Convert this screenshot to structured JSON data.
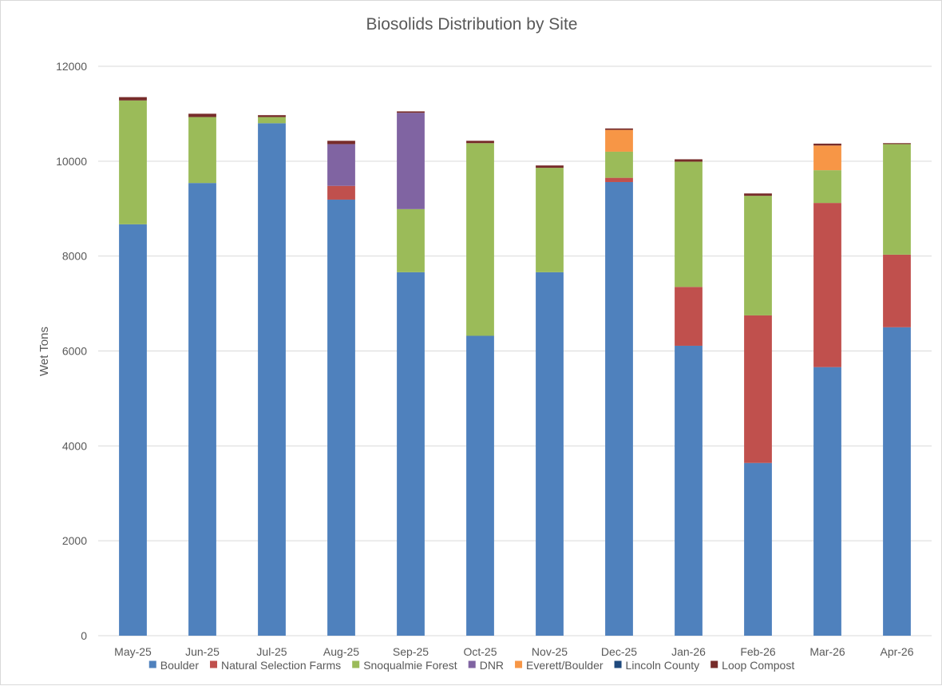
{
  "chart_data": {
    "type": "bar",
    "stacked": true,
    "title": "Biosolids Distribution by Site",
    "xlabel": "",
    "ylabel": "Wet Tons",
    "ylim": [
      0,
      12000
    ],
    "yticks": [
      0,
      2000,
      4000,
      6000,
      8000,
      10000,
      12000
    ],
    "grid": true,
    "legend_position": "bottom",
    "categories": [
      "May-25",
      "Jun-25",
      "Jul-25",
      "Aug-25",
      "Sep-25",
      "Oct-25",
      "Nov-25",
      "Dec-25",
      "Jan-26",
      "Feb-26",
      "Mar-26",
      "Apr-26"
    ],
    "series": [
      {
        "name": "Boulder",
        "color": "#4f81bd",
        "values": [
          8670,
          9540,
          10800,
          9190,
          7660,
          6320,
          7660,
          9560,
          6110,
          3640,
          5660,
          6500
        ]
      },
      {
        "name": "Natural Selection Farms",
        "color": "#c0504d",
        "values": [
          0,
          0,
          0,
          290,
          0,
          0,
          0,
          90,
          1240,
          3110,
          3460,
          1530
        ]
      },
      {
        "name": "Snoqualmie Forest",
        "color": "#9bbb59",
        "values": [
          2610,
          1390,
          130,
          0,
          1330,
          4060,
          2200,
          550,
          2640,
          2520,
          690,
          2330
        ]
      },
      {
        "name": "DNR",
        "color": "#8064a2",
        "values": [
          0,
          0,
          0,
          880,
          2030,
          0,
          0,
          0,
          0,
          0,
          0,
          0
        ]
      },
      {
        "name": "Everett/Boulder",
        "color": "#f79646",
        "values": [
          0,
          0,
          0,
          0,
          0,
          0,
          0,
          460,
          0,
          0,
          520,
          0
        ]
      },
      {
        "name": "Lincoln County",
        "color": "#1f497d",
        "values": [
          0,
          0,
          0,
          0,
          0,
          0,
          0,
          0,
          0,
          0,
          0,
          0
        ]
      },
      {
        "name": "Loop Compost",
        "color": "#772c2a",
        "values": [
          70,
          70,
          40,
          70,
          30,
          50,
          50,
          30,
          50,
          50,
          40,
          20
        ]
      }
    ]
  }
}
